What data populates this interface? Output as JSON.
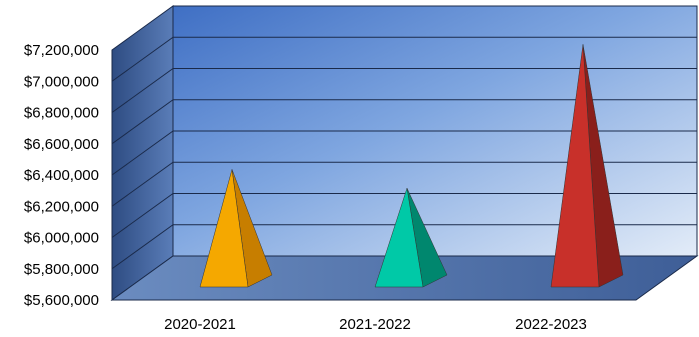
{
  "chart_data": {
    "type": "bar",
    "shape": "pyramid-3d",
    "categories": [
      "2020-2021",
      "2021-2022",
      "2022-2023"
    ],
    "values": [
      6410000,
      6290000,
      7210000
    ],
    "ylim": [
      5600000,
      7200000
    ],
    "yticks": [
      5600000,
      5800000,
      6000000,
      6200000,
      6400000,
      6600000,
      6800000,
      7000000,
      7200000
    ],
    "ytick_labels": [
      "$5,600,000",
      "$5,800,000",
      "$6,000,000",
      "$6,200,000",
      "$6,400,000",
      "$6,600,000",
      "$6,800,000",
      "$7,000,000",
      "$7,200,000"
    ],
    "title": "",
    "xlabel": "",
    "ylabel": "",
    "grid": true,
    "legend": "none",
    "colors": {
      "bars": [
        "#F5A800",
        "#00C9A7",
        "#C8302A"
      ],
      "bars_side": [
        "#C77E00",
        "#00876E",
        "#8A1F1B"
      ],
      "back_wall": "#6A93D6",
      "side_wall": "#3D5F96",
      "floor": "#4A6FA8",
      "gridline": "#1A2A4A"
    }
  }
}
